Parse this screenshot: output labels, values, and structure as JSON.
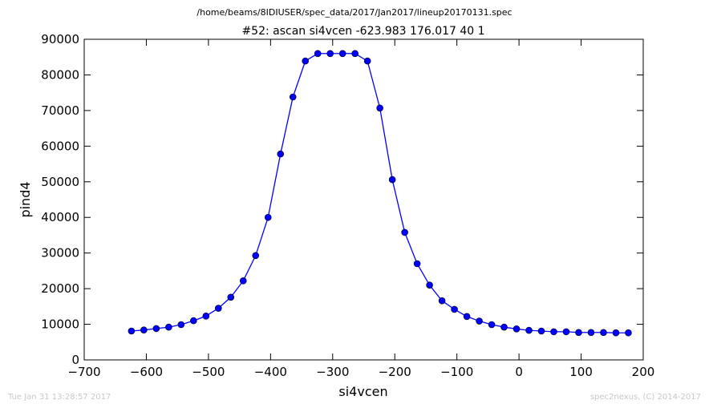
{
  "figure": {
    "suptitle": "/home/beams/8IDIUSER/spec_data/2017/Jan2017/lineup20170131.spec",
    "footer_left": "Tue Jan 31 13:28:57 2017",
    "footer_right": "spec2nexus, (C) 2014-2017"
  },
  "chart_data": {
    "type": "line",
    "title": "#52: ascan  si4vcen -623.983 176.017  40 1",
    "xlabel": "si4vcen",
    "ylabel": "pind4",
    "xlim": [
      -700,
      200
    ],
    "ylim": [
      0,
      90000
    ],
    "xticks": [
      -700,
      -600,
      -500,
      -400,
      -300,
      -200,
      -100,
      0,
      100,
      200
    ],
    "yticks": [
      0,
      10000,
      20000,
      30000,
      40000,
      50000,
      60000,
      70000,
      80000,
      90000
    ],
    "grid": false,
    "marker": "circle",
    "line_color": "#0000ff",
    "marker_color": "#0000ff",
    "series": [
      {
        "x": [
          -623.983,
          -603.983,
          -583.983,
          -563.983,
          -543.983,
          -523.983,
          -503.983,
          -483.983,
          -463.983,
          -443.983,
          -423.983,
          -403.983,
          -383.983,
          -363.983,
          -343.983,
          -323.983,
          -303.983,
          -283.983,
          -263.983,
          -243.983,
          -223.983,
          -203.983,
          -183.983,
          -163.983,
          -143.983,
          -123.983,
          -103.983,
          -83.983,
          -63.983,
          -43.983,
          -23.983,
          -3.983,
          16.017,
          36.017,
          56.017,
          76.017,
          96.017,
          116.017,
          136.017,
          156.017,
          176.017
        ],
        "y": [
          8100,
          8400,
          8800,
          9200,
          9900,
          11000,
          12300,
          14500,
          17600,
          22200,
          29300,
          40000,
          57800,
          73800,
          83900,
          86000,
          86000,
          86000,
          86000,
          83900,
          70700,
          50600,
          35800,
          27000,
          21000,
          16600,
          14200,
          12200,
          10900,
          9900,
          9200,
          8700,
          8300,
          8100,
          7900,
          7900,
          7700,
          7700,
          7700,
          7600,
          7600
        ]
      }
    ]
  }
}
